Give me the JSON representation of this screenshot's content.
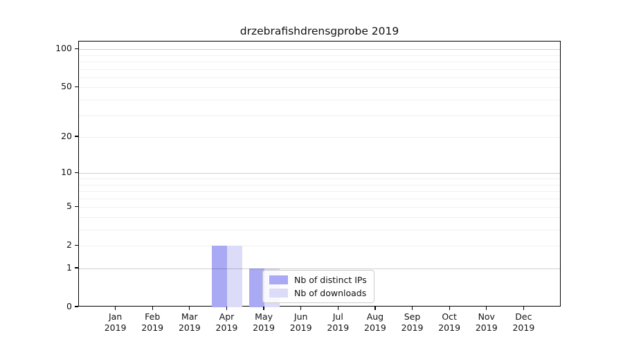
{
  "chart_data": {
    "type": "bar",
    "title": "drzebrafishdrensgprobe 2019",
    "categories": [
      "Jan",
      "Feb",
      "Mar",
      "Apr",
      "May",
      "Jun",
      "Jul",
      "Aug",
      "Sep",
      "Oct",
      "Nov",
      "Dec"
    ],
    "xtick_year": "2019",
    "series": [
      {
        "name": "Nb of distinct IPs",
        "color": "#a9a9f4",
        "values": [
          0,
          0,
          0,
          2,
          1,
          0,
          0,
          0,
          0,
          0,
          0,
          0
        ]
      },
      {
        "name": "Nb of downloads",
        "color": "#dcdcf9",
        "values": [
          0,
          0,
          0,
          2,
          1,
          0,
          0,
          0,
          0,
          0,
          0,
          0
        ]
      }
    ],
    "yscale": "log1p",
    "ylim": [
      0,
      115
    ],
    "ytick_values": [
      0,
      1,
      2,
      5,
      10,
      20,
      50,
      100
    ],
    "ytick_labels": [
      "0",
      "1",
      "2",
      "5",
      "10",
      "20",
      "50",
      "100"
    ],
    "minor_grid_values": [
      2,
      3,
      4,
      5,
      6,
      7,
      8,
      9,
      20,
      30,
      40,
      50,
      60,
      70,
      80,
      90
    ],
    "major_grid_values": [
      1,
      10,
      100
    ],
    "grid": true,
    "legend_position": "lower center-left inside plot",
    "colors": {
      "axis": "#000000",
      "minor_grid": "#f0f0f0",
      "major_grid": "#cccccc",
      "legend_border": "#cccccc"
    }
  }
}
